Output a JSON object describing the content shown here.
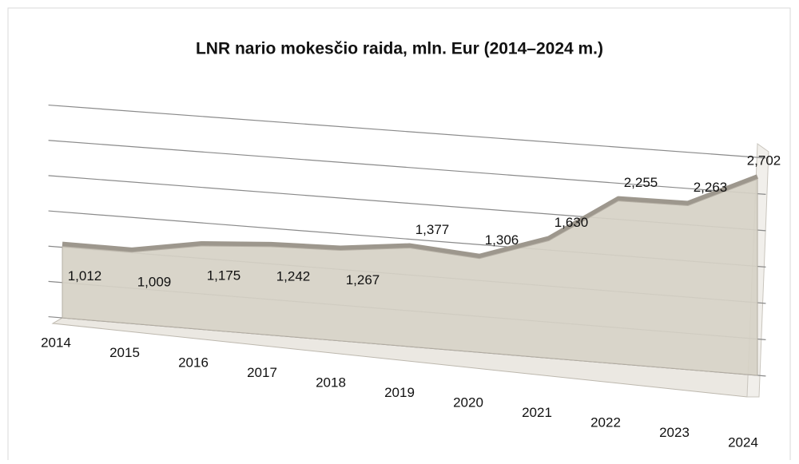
{
  "chart_data": {
    "type": "area",
    "title": "LNR nario mokesčio raida, mln. Eur (2014–2024 m.)",
    "categories": [
      "2014",
      "2015",
      "2016",
      "2017",
      "2018",
      "2019",
      "2020",
      "2021",
      "2022",
      "2023",
      "2024"
    ],
    "values": [
      1012,
      1009,
      1175,
      1242,
      1267,
      1377,
      1306,
      1630,
      2255,
      2263,
      2702
    ],
    "value_labels": [
      "1,012",
      "1,009",
      "1,175",
      "1,242",
      "1,267",
      "1,377",
      "1,306",
      "1,630",
      "2,255",
      "2,263",
      "2,702"
    ],
    "color": "#d6d1c6",
    "ylim": [
      0,
      3000
    ],
    "yticks": [
      0,
      500,
      1000,
      1500,
      2000,
      2500,
      3000
    ],
    "grid": true
  }
}
